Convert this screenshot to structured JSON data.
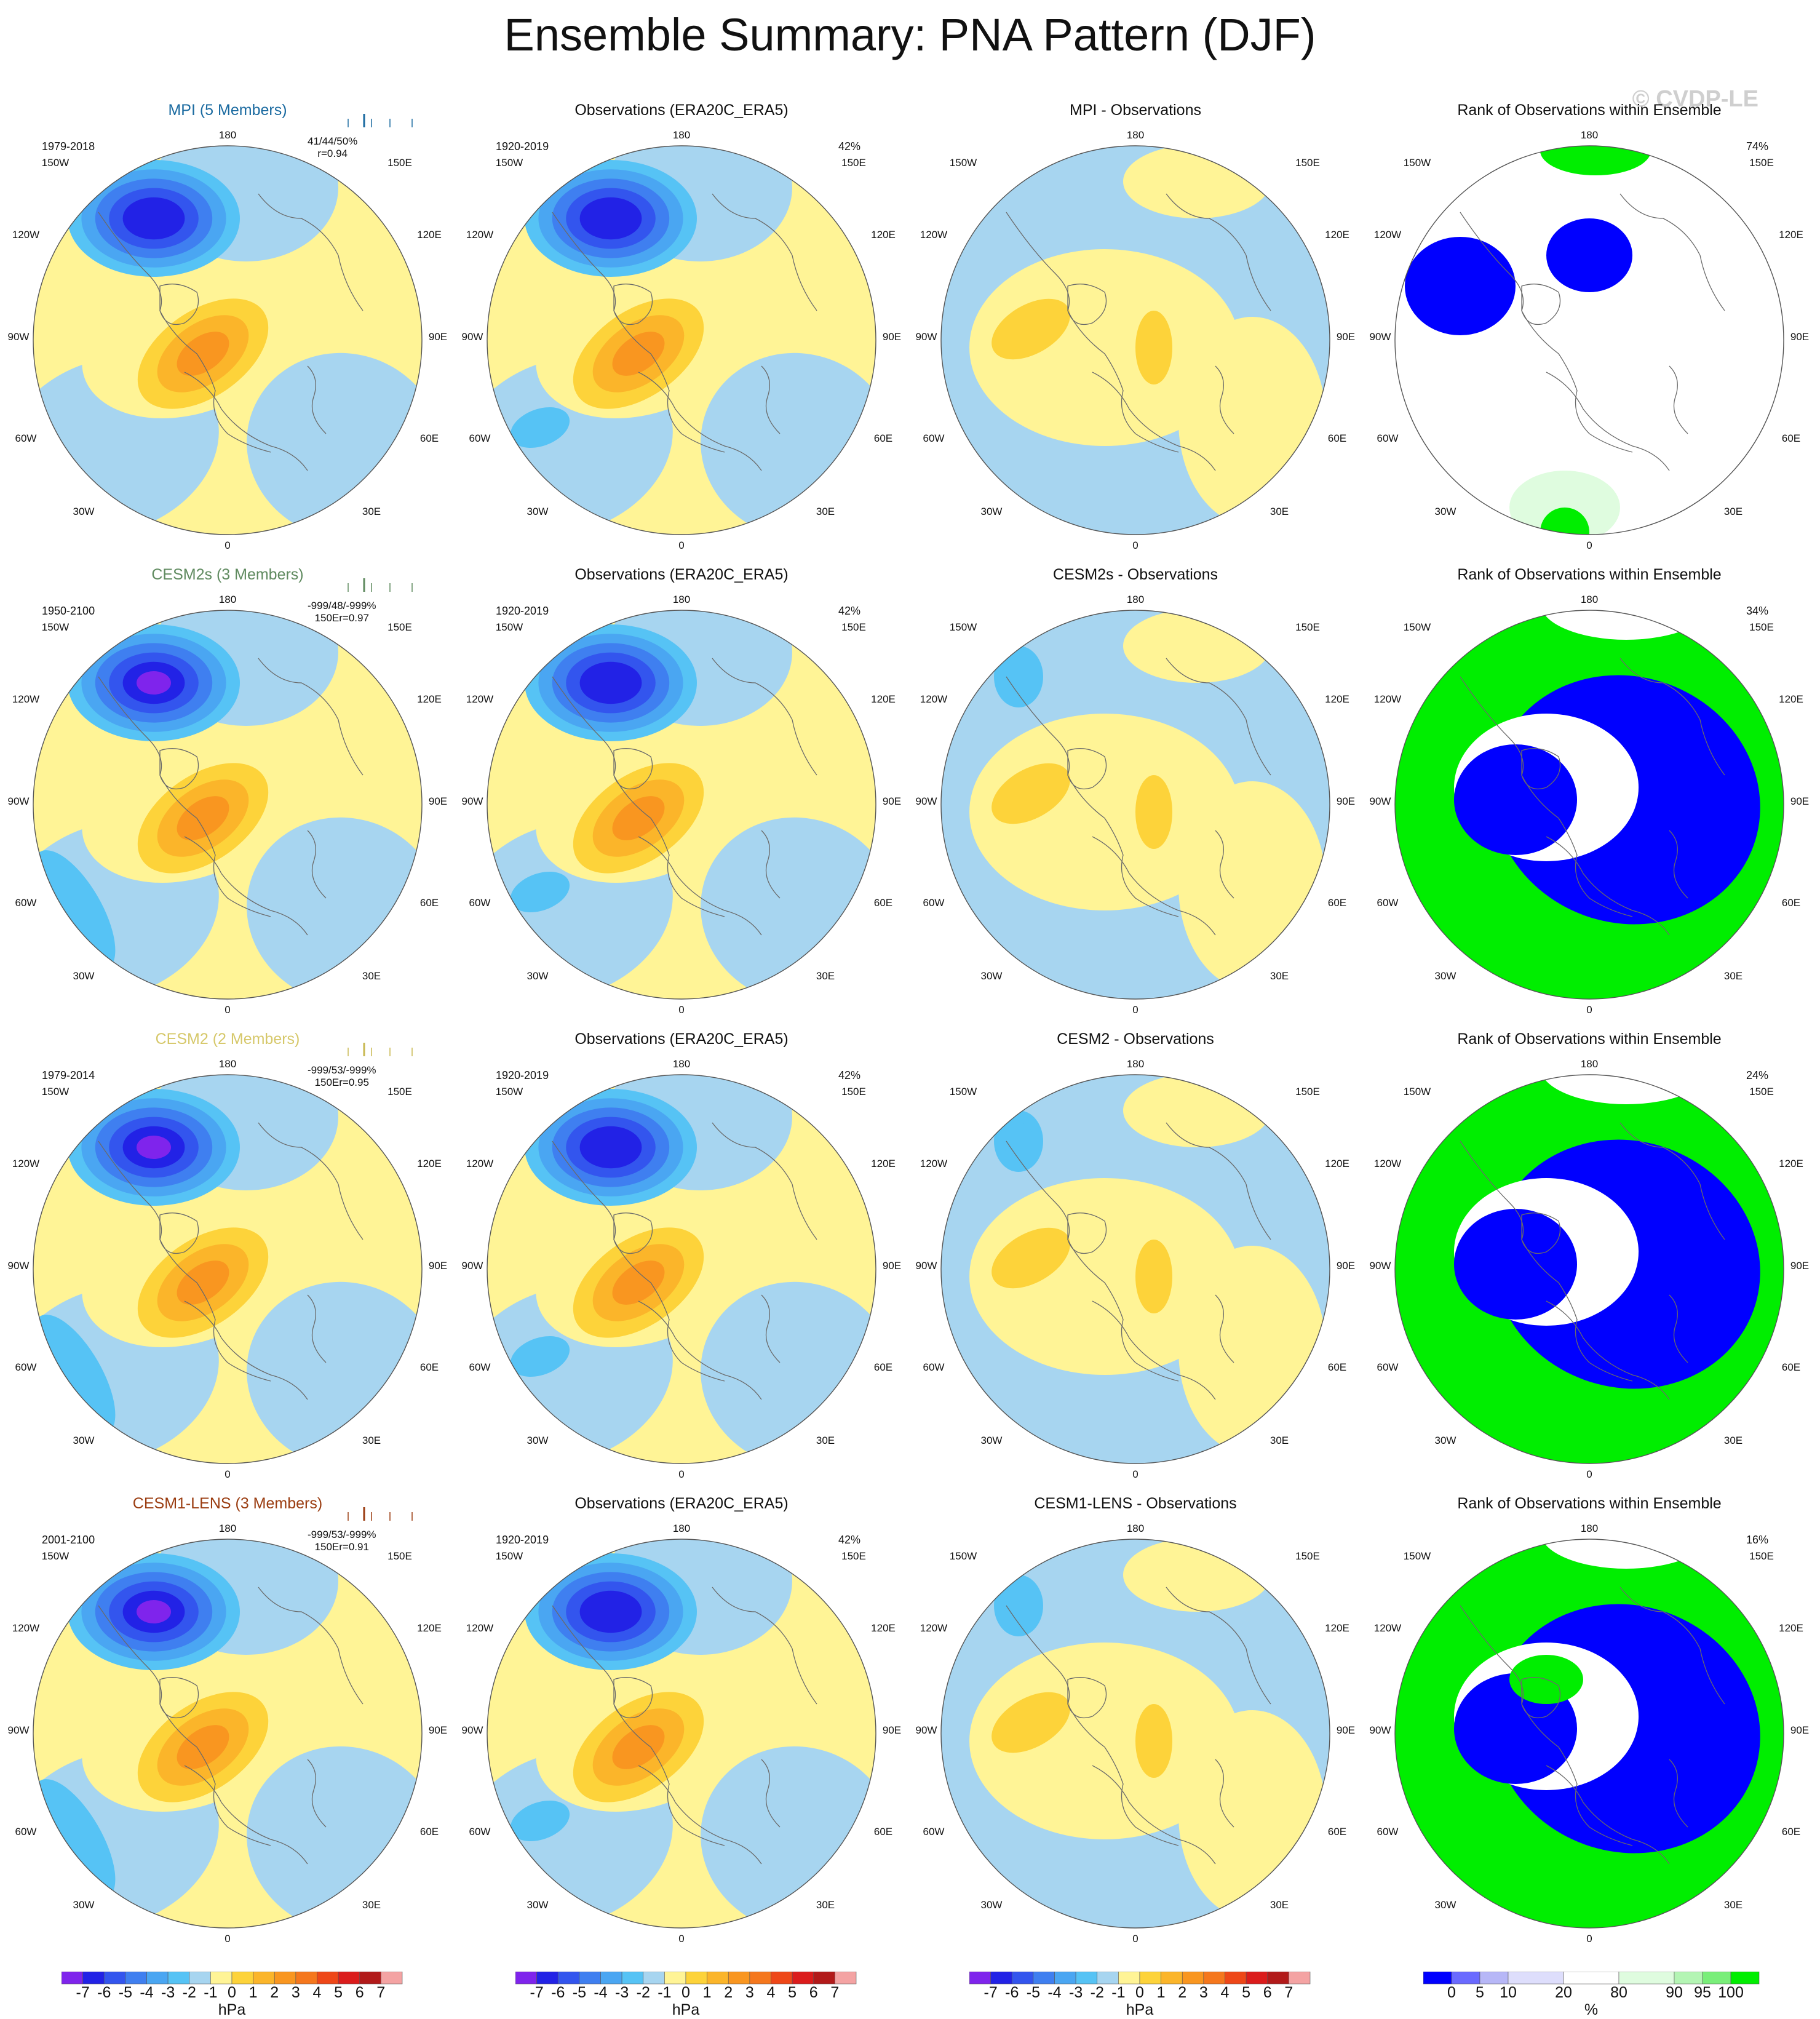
{
  "title": "Ensemble Summary: PNA Pattern (DJF)",
  "copyright": "© CVDP-LE",
  "colors": {
    "neg": [
      "#7f24ec",
      "#2222e6",
      "#3355ee",
      "#3f7ff0",
      "#4aa6f2",
      "#56c3f5",
      "#a7d5f0"
    ],
    "pos": [
      "#fff496",
      "#fdd33a",
      "#fbb52a",
      "#f99620",
      "#f5771d",
      "#ee4718",
      "#db1c1c",
      "#b21a1a",
      "#f4a3a3"
    ],
    "rank": [
      "#0000ff",
      "#6a6aff",
      "#b7b7f7",
      "#dedefc",
      "#ffffff",
      "#dffcdf",
      "#b4f5b4",
      "#79ee79",
      "#00ee00"
    ]
  },
  "lon_labels": {
    "top": "180",
    "bottom": "0",
    "left": [
      "150W",
      "120W",
      "90W",
      "60W",
      "30W"
    ],
    "right": [
      "150E",
      "120E",
      "90E",
      "60E",
      "30E"
    ]
  },
  "rows": [
    {
      "model": {
        "title": "MPI (5 Members)",
        "title_color": "#1a6aa0",
        "period": "1979-2018",
        "stats": [
          "41/44/50%",
          "r=0.94"
        ],
        "tick_color": "#1a6aa0"
      },
      "obs": {
        "title": "Observations (ERA20C_ERA5)",
        "period": "1920-2019",
        "pct": "42%"
      },
      "diff": {
        "title": "MPI - Observations"
      },
      "rank": {
        "title": "Rank of Observations within Ensemble",
        "pct": "74%"
      }
    },
    {
      "model": {
        "title": "CESM2s (3 Members)",
        "title_color": "#5f8a5f",
        "period": "1950-2100",
        "stats": [
          "-999/48/-999%",
          "150Er=0.97"
        ],
        "tick_color": "#5f8a5f"
      },
      "obs": {
        "title": "Observations (ERA20C_ERA5)",
        "period": "1920-2019",
        "pct": "42%"
      },
      "diff": {
        "title": "CESM2s - Observations"
      },
      "rank": {
        "title": "Rank of Observations within Ensemble",
        "pct": "34%"
      }
    },
    {
      "model": {
        "title": "CESM2 (2 Members)",
        "title_color": "#d6c86a",
        "period": "1979-2014",
        "stats": [
          "-999/53/-999%",
          "150Er=0.95"
        ],
        "tick_color": "#c8b850"
      },
      "obs": {
        "title": "Observations (ERA20C_ERA5)",
        "period": "1920-2019",
        "pct": "42%"
      },
      "diff": {
        "title": "CESM2 - Observations"
      },
      "rank": {
        "title": "Rank of Observations within Ensemble",
        "pct": "24%"
      }
    },
    {
      "model": {
        "title": "CESM1-LENS (3 Members)",
        "title_color": "#9a3c10",
        "period": "2001-2100",
        "stats": [
          "-999/53/-999%",
          "150Er=0.91"
        ],
        "tick_color": "#9a3c10"
      },
      "obs": {
        "title": "Observations (ERA20C_ERA5)",
        "period": "1920-2019",
        "pct": "42%"
      },
      "diff": {
        "title": "CESM1-LENS - Observations"
      },
      "rank": {
        "title": "Rank of Observations within Ensemble",
        "pct": "16%"
      }
    }
  ],
  "colorbars": {
    "hpa_labels": [
      "-7",
      "-6",
      "-5",
      "-4",
      "-3",
      "-2",
      "-1",
      "0",
      "1",
      "2",
      "3",
      "4",
      "5",
      "6",
      "7"
    ],
    "hpa_unit": "hPa",
    "rank_labels": [
      "0",
      "5",
      "10",
      "20",
      "80",
      "90",
      "95",
      "100"
    ],
    "rank_unit": "%"
  },
  "chart_data": {
    "type": "heatmap",
    "title": "Ensemble Summary: PNA Pattern (DJF)",
    "projection": "north polar stereographic",
    "panels_per_row": [
      "model ensemble mean",
      "observations",
      "model minus observations",
      "rank of observations"
    ],
    "colorbar_sea_level_pressure_hPa": [
      -7,
      -6,
      -5,
      -4,
      -3,
      -2,
      -1,
      0,
      1,
      2,
      3,
      4,
      5,
      6,
      7
    ],
    "colorbar_rank_percent": [
      0,
      5,
      10,
      20,
      80,
      90,
      95,
      100
    ],
    "pattern_minimum_hPa": {
      "MPI": -6,
      "CESM2s": -7,
      "CESM2": -7,
      "CESM1-LENS": -7,
      "Observations": -6
    },
    "pattern_maximum_hPa": {
      "MPI": 3,
      "CESM2s": 3,
      "CESM2": 3,
      "CESM1-LENS": 3,
      "Observations": 3
    },
    "rank_percent": {
      "MPI": 74,
      "CESM2s": 34,
      "CESM2": 24,
      "CESM1-LENS": 16
    }
  }
}
